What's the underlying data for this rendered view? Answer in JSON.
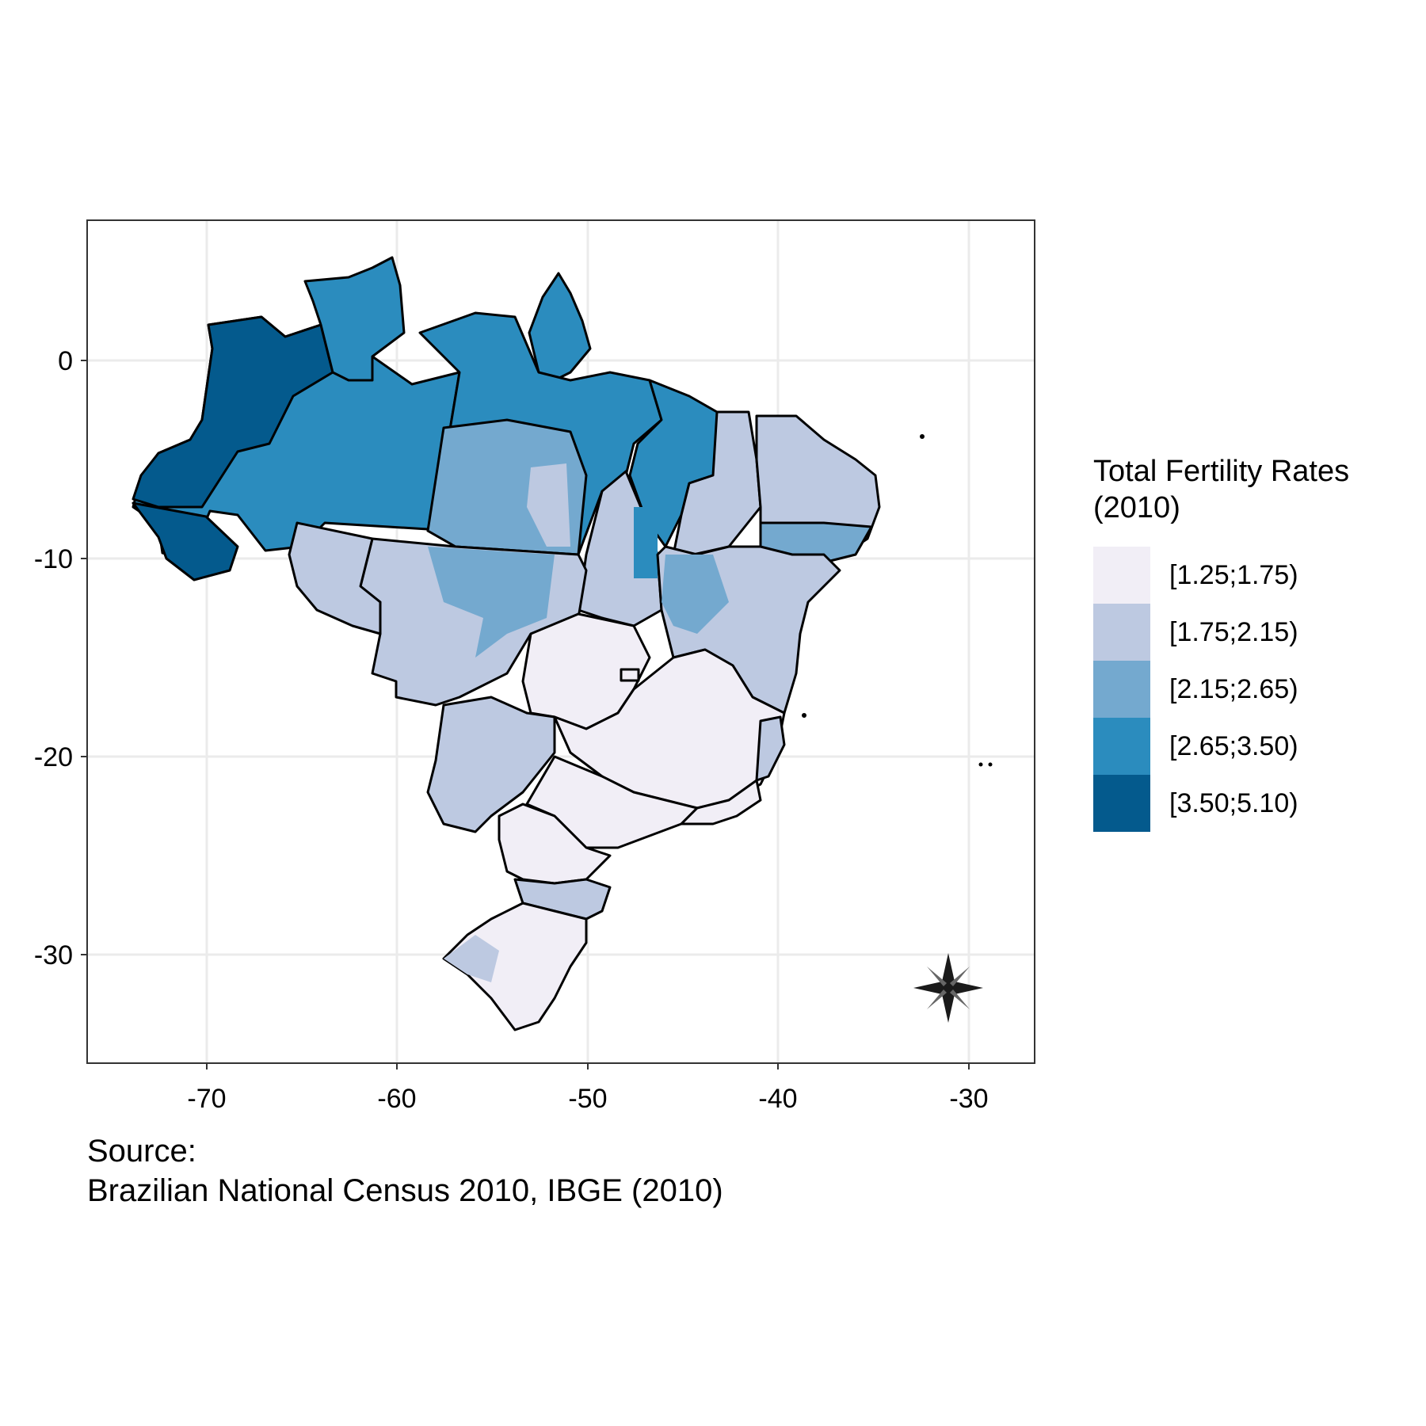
{
  "map": {
    "x_ticks": [
      "-70",
      "-60",
      "-50",
      "-40",
      "-30"
    ],
    "y_ticks": [
      "0",
      "-10",
      "-20",
      "-30"
    ],
    "x_range": [
      -76.2,
      -26.5
    ],
    "y_range": [
      -35.8,
      7.1
    ],
    "grid": "on",
    "north_arrow": "compass-star-icon",
    "colors": {
      "class_1": "#f1eef6",
      "class_2": "#bdc9e1",
      "class_3": "#74a9cf",
      "class_4": "#2b8cbe",
      "class_5": "#045a8d",
      "border": "#000000",
      "grid": "#ebebeb"
    }
  },
  "legend": {
    "title_line1": "Total Fertility Rates",
    "title_line2": "(2010)",
    "items": [
      {
        "label": "[1.25;1.75)",
        "color": "#f1eef6"
      },
      {
        "label": "[1.75;2.15)",
        "color": "#bdc9e1"
      },
      {
        "label": "[2.15;2.65)",
        "color": "#74a9cf"
      },
      {
        "label": "[2.65;3.50)",
        "color": "#2b8cbe"
      },
      {
        "label": "[3.50;5.10)",
        "color": "#045a8d"
      }
    ]
  },
  "caption": {
    "line1": "Source:",
    "line2": "Brazilian National Census 2010, IBGE (2010)"
  }
}
